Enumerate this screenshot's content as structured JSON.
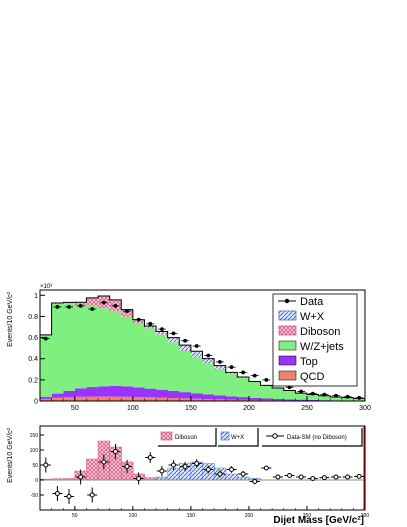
{
  "colors": {
    "qcd": "#f08070",
    "top": "#9933ff",
    "wzjets": "#7fef7f",
    "diboson": "#f7c8d8",
    "wx": "#6f8fdf",
    "wx_fill": "#dde6fb",
    "data": "#000000",
    "frame": "#000000",
    "zero_line": "#8a8a8a"
  },
  "chart_data": [
    {
      "type": "bar",
      "stacked": true,
      "ylabel": "Events/10 GeV/c²",
      "y_exponent": "×10³",
      "xlim": [
        20,
        300
      ],
      "ylim": [
        0,
        1.05
      ],
      "x_ticks": [
        "50",
        "100",
        "150",
        "200",
        "250",
        "300"
      ],
      "y_ticks": [
        "0",
        "0.2",
        "0.4",
        "0.6",
        "0.8",
        "1"
      ],
      "legend_position": "top-right",
      "legend": [
        {
          "key": "data",
          "label": "Data"
        },
        {
          "key": "wx",
          "label": "W+X"
        },
        {
          "key": "diboson",
          "label": "Diboson"
        },
        {
          "key": "wzjets",
          "label": "W/Z+jets"
        },
        {
          "key": "top",
          "label": "Top"
        },
        {
          "key": "qcd",
          "label": "QCD"
        }
      ],
      "bin_edges": [
        20,
        30,
        40,
        50,
        60,
        70,
        80,
        90,
        100,
        110,
        120,
        130,
        140,
        150,
        160,
        170,
        180,
        190,
        200,
        210,
        220,
        230,
        240,
        250,
        260,
        270,
        280,
        290,
        300
      ],
      "series": [
        {
          "key": "qcd",
          "name": "QCD",
          "values": [
            0.02,
            0.03,
            0.035,
            0.04,
            0.042,
            0.043,
            0.042,
            0.04,
            0.038,
            0.035,
            0.032,
            0.028,
            0.025,
            0.022,
            0.019,
            0.016,
            0.013,
            0.011,
            0.009,
            0.007,
            0.006,
            0.005,
            0.004,
            0.003,
            0.003,
            0.002,
            0.002,
            0.001
          ]
        },
        {
          "key": "top",
          "name": "Top",
          "values": [
            0.02,
            0.04,
            0.06,
            0.08,
            0.09,
            0.095,
            0.1,
            0.098,
            0.09,
            0.082,
            0.075,
            0.067,
            0.059,
            0.051,
            0.044,
            0.037,
            0.031,
            0.026,
            0.021,
            0.017,
            0.014,
            0.011,
            0.009,
            0.007,
            0.005,
            0.004,
            0.003,
            0.002
          ]
        },
        {
          "key": "wzjets",
          "name": "W/Z+jets",
          "values": [
            0.58,
            0.85,
            0.83,
            0.78,
            0.77,
            0.74,
            0.71,
            0.66,
            0.61,
            0.57,
            0.52,
            0.46,
            0.39,
            0.34,
            0.29,
            0.25,
            0.21,
            0.18,
            0.15,
            0.12,
            0.1,
            0.08,
            0.06,
            0.05,
            0.04,
            0.03,
            0.025,
            0.02
          ]
        },
        {
          "key": "diboson",
          "name": "Diboson",
          "values": [
            0.003,
            0.004,
            0.005,
            0.03,
            0.07,
            0.11,
            0.1,
            0.06,
            0.02,
            0.008,
            0.006,
            0.005,
            0.004,
            0.003,
            0.003,
            0.002,
            0.002,
            0.002,
            0.001,
            0.001,
            0.001,
            0.001,
            0.001,
            0.001,
            0.001,
            0.001,
            0.001,
            0.001
          ]
        },
        {
          "key": "wx",
          "name": "W+X",
          "values": [
            0.002,
            0.003,
            0.003,
            0.004,
            0.004,
            0.005,
            0.005,
            0.006,
            0.01,
            0.015,
            0.025,
            0.04,
            0.05,
            0.055,
            0.045,
            0.03,
            0.015,
            0.008,
            0.004,
            0.003,
            0.002,
            0.002,
            0.001,
            0.001,
            0.001,
            0.001,
            0.001,
            0.001
          ]
        }
      ],
      "data_points": {
        "x": [
          25,
          35,
          45,
          55,
          65,
          75,
          85,
          95,
          105,
          115,
          125,
          135,
          145,
          155,
          165,
          175,
          185,
          195,
          205,
          215,
          225,
          235,
          245,
          255,
          265,
          275,
          285,
          295
        ],
        "y": [
          0.59,
          0.89,
          0.89,
          0.9,
          0.87,
          0.93,
          0.9,
          0.85,
          0.77,
          0.73,
          0.68,
          0.64,
          0.57,
          0.52,
          0.43,
          0.37,
          0.32,
          0.27,
          0.24,
          0.2,
          0.16,
          0.13,
          0.09,
          0.07,
          0.06,
          0.05,
          0.04,
          0.03
        ]
      }
    },
    {
      "type": "bar",
      "ylabel": "Events/10 GeV/c²",
      "xlabel": "Dijet Mass [GeV/c²]",
      "xlim": [
        20,
        300
      ],
      "ylim": [
        -100,
        180
      ],
      "x_ticks": [
        "50",
        "100",
        "150",
        "200",
        "250",
        "300"
      ],
      "y_ticks": [
        "-50",
        "0",
        "50",
        "100",
        "150"
      ],
      "legend_position": "top",
      "legend": [
        {
          "key": "diboson",
          "label": "Diboson"
        },
        {
          "key": "wx",
          "label": "W+X"
        },
        {
          "key": "data",
          "label": "Data-SM (no Diboson)"
        }
      ],
      "bin_edges": [
        20,
        30,
        40,
        50,
        60,
        70,
        80,
        90,
        100,
        110,
        120,
        130,
        140,
        150,
        160,
        170,
        180,
        190,
        200,
        210,
        220,
        230,
        240,
        250,
        260,
        270,
        280,
        290,
        300
      ],
      "series": [
        {
          "key": "diboson",
          "name": "Diboson",
          "values": [
            3,
            4,
            5,
            30,
            70,
            130,
            110,
            60,
            20,
            8,
            6,
            5,
            4,
            3,
            3,
            2,
            2,
            2,
            1,
            1,
            1,
            1,
            1,
            1,
            1,
            1,
            1,
            1
          ]
        },
        {
          "key": "wx",
          "name": "W+X",
          "values": [
            0,
            0,
            0,
            0,
            0,
            0,
            0,
            0,
            0,
            0,
            10,
            40,
            55,
            60,
            55,
            40,
            20,
            10,
            5,
            0,
            0,
            0,
            0,
            0,
            0,
            0,
            0,
            0
          ]
        }
      ],
      "data_points": {
        "x": [
          25,
          35,
          45,
          55,
          65,
          75,
          85,
          95,
          105,
          115,
          125,
          135,
          145,
          155,
          165,
          175,
          185,
          195,
          205,
          215,
          225,
          235,
          245,
          255,
          265,
          275,
          285,
          295
        ],
        "y": [
          50,
          -45,
          -55,
          10,
          -50,
          60,
          95,
          45,
          5,
          75,
          30,
          50,
          45,
          55,
          35,
          20,
          35,
          20,
          -5,
          40,
          10,
          15,
          10,
          5,
          8,
          10,
          10,
          12
        ],
        "y_err": [
          25,
          25,
          25,
          25,
          25,
          25,
          25,
          22,
          20,
          18,
          17,
          16,
          15,
          14,
          13,
          12,
          11,
          10,
          9,
          8,
          7,
          6,
          5,
          5,
          5,
          5,
          5,
          5
        ]
      }
    }
  ]
}
